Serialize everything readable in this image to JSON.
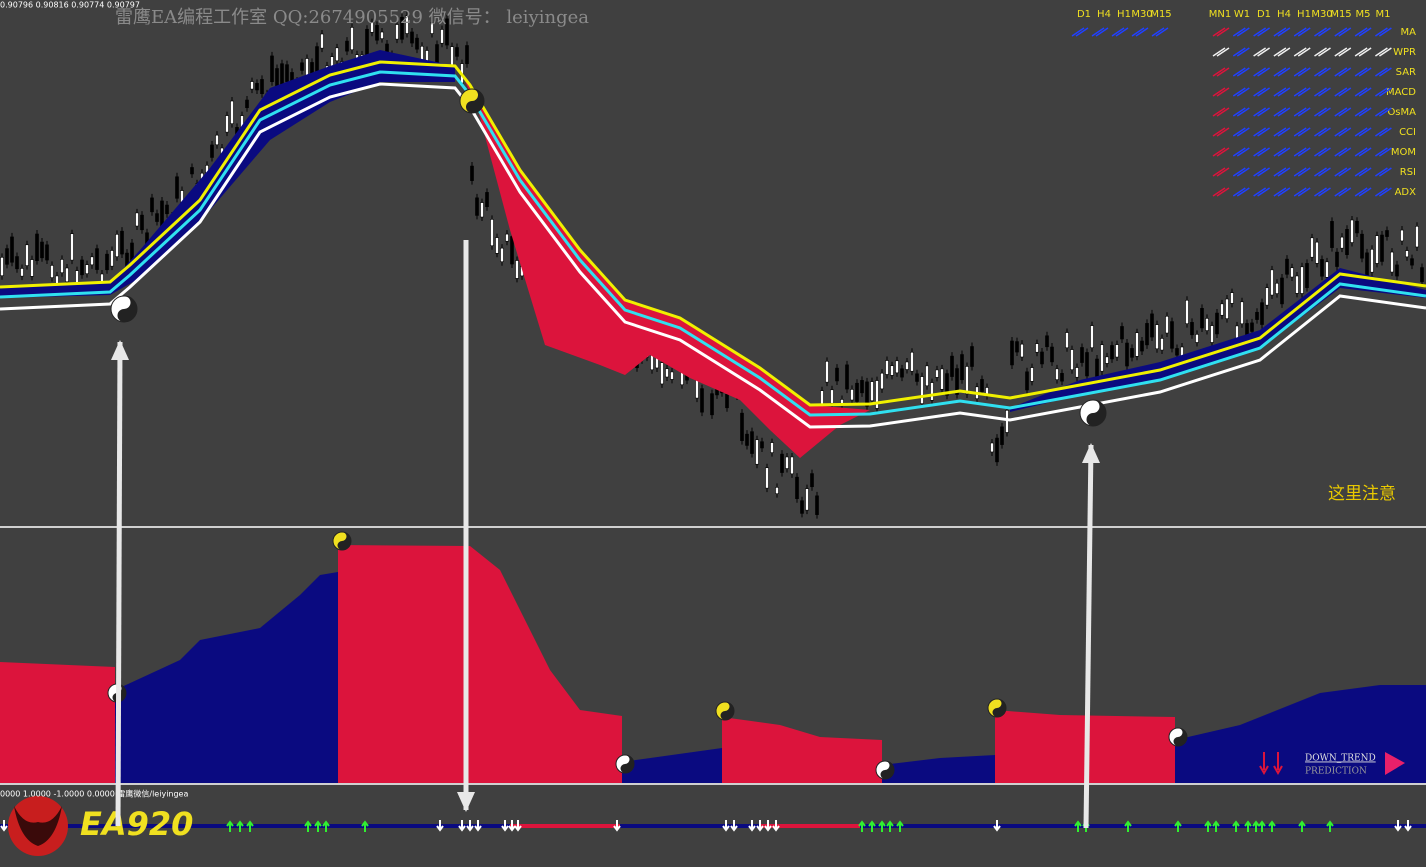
{
  "header": {
    "price_readout": "0.90796 0.90816 0.90774 0.90797",
    "watermark": "雷鹰EA编程工作室 QQ:2674905529 微信号： leiyingea"
  },
  "panel_1": {
    "timeframes": [
      "D1",
      "H4",
      "H1",
      "M30",
      "M15"
    ]
  },
  "panel_2": {
    "timeframes": [
      "MN1",
      "W1",
      "D1",
      "H4",
      "H1",
      "M30",
      "M15",
      "M5",
      "M1"
    ],
    "indicators": [
      "MA",
      "WPR",
      "SAR",
      "MACD",
      "OsMA",
      "CCI",
      "MOM",
      "RSI",
      "ADX"
    ]
  },
  "note": "这里注意",
  "indicator_readout": "0000 1.0000 -1.0000 0.0000 雷鹰微信/leiyingea",
  "logo": "EA920",
  "trend": {
    "label": "DOWN_TREND",
    "sublabel": "PREDICTION"
  }
}
